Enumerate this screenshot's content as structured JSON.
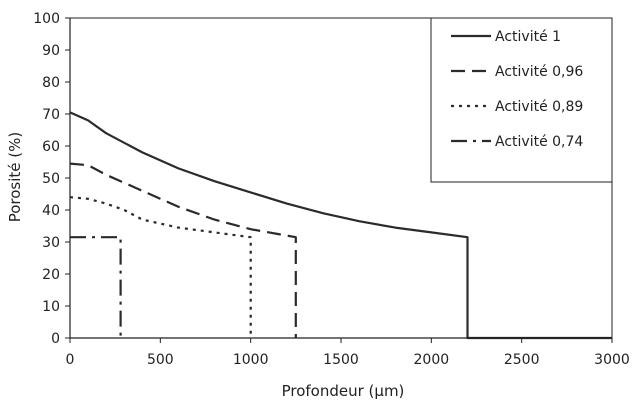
{
  "chart_data": {
    "type": "line",
    "xlabel": "Profondeur (µm)",
    "ylabel": "Porosité (%)",
    "xlim": [
      0,
      3000
    ],
    "ylim": [
      0,
      100
    ],
    "x_ticks": [
      "0",
      "500",
      "1000",
      "1500",
      "2000",
      "2500",
      "3000"
    ],
    "y_ticks": [
      "0",
      "10",
      "20",
      "30",
      "40",
      "50",
      "60",
      "70",
      "80",
      "90",
      "100"
    ],
    "grid": false,
    "legend_position": "top-right",
    "series": [
      {
        "name": "Activité 1",
        "dash": "solid",
        "points": [
          [
            0,
            70.5
          ],
          [
            100,
            68
          ],
          [
            200,
            64
          ],
          [
            400,
            58
          ],
          [
            600,
            53
          ],
          [
            800,
            49
          ],
          [
            1000,
            45.5
          ],
          [
            1200,
            42
          ],
          [
            1400,
            39
          ],
          [
            1600,
            36.5
          ],
          [
            1800,
            34.5
          ],
          [
            2000,
            33
          ],
          [
            2200,
            31.5
          ],
          [
            2200,
            0
          ],
          [
            3000,
            0
          ]
        ]
      },
      {
        "name": "Activité 0,96",
        "dash": "long-dash",
        "points": [
          [
            0,
            54.5
          ],
          [
            100,
            54
          ],
          [
            200,
            51
          ],
          [
            400,
            46
          ],
          [
            600,
            41
          ],
          [
            800,
            37
          ],
          [
            1000,
            34
          ],
          [
            1150,
            32.5
          ],
          [
            1250,
            31.5
          ],
          [
            1250,
            0
          ]
        ]
      },
      {
        "name": "Activité 0,89",
        "dash": "dotted",
        "points": [
          [
            0,
            44
          ],
          [
            100,
            43.5
          ],
          [
            200,
            42
          ],
          [
            300,
            40
          ],
          [
            400,
            37
          ],
          [
            600,
            34.5
          ],
          [
            800,
            33
          ],
          [
            1000,
            31.5
          ],
          [
            1000,
            0
          ]
        ]
      },
      {
        "name": "Activité 0,74",
        "dash": "dash-dot",
        "points": [
          [
            0,
            31.5
          ],
          [
            280,
            31.5
          ],
          [
            280,
            0
          ]
        ]
      }
    ]
  },
  "legend": {
    "items": [
      {
        "label": "Activité 1",
        "dash": "solid"
      },
      {
        "label": "Activité 0,96",
        "dash": "long-dash"
      },
      {
        "label": "Activité 0,89",
        "dash": "dotted"
      },
      {
        "label": "Activité 0,74",
        "dash": "dash-dot"
      }
    ]
  },
  "colors": {
    "line": "#2b2b2b",
    "axis": "#222222"
  }
}
